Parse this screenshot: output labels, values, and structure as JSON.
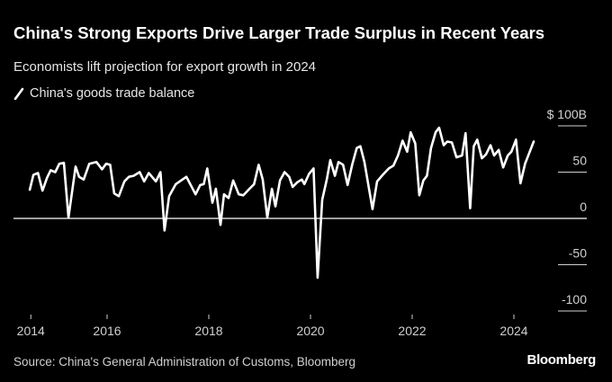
{
  "chart_data": {
    "type": "line",
    "title": "China's Strong Exports Drive Larger Trade Surplus in Recent Years",
    "subtitle": "Economists lift projection for export growth in 2024",
    "xlabel": "",
    "ylabel": "",
    "legend": {
      "position": "top-left",
      "entries": [
        "China's goods trade balance"
      ]
    },
    "y_unit_label": "$ 100B",
    "ylim": [
      -100,
      100
    ],
    "y_ticks": [
      {
        "value": 100,
        "label": "$ 100B"
      },
      {
        "value": 50,
        "label": "50"
      },
      {
        "value": 0,
        "label": "0"
      },
      {
        "value": -50,
        "label": "-50"
      },
      {
        "value": -100,
        "label": "-100"
      }
    ],
    "x_ticks": [
      {
        "value": 2014.5,
        "label": "2014"
      },
      {
        "value": 2016,
        "label": "2016"
      },
      {
        "value": 2018,
        "label": "2018"
      },
      {
        "value": 2020,
        "label": "2020"
      },
      {
        "value": 2022,
        "label": "2022"
      },
      {
        "value": 2024,
        "label": "2024"
      }
    ],
    "xlim": [
      2014.1,
      2025.4
    ],
    "grid": false,
    "series": [
      {
        "name": "China's goods trade balance",
        "color": "#ffffff",
        "x": [
          2014.48,
          2014.55,
          2014.64,
          2014.73,
          2014.82,
          2014.89,
          2014.98,
          2015.06,
          2015.15,
          2015.24,
          2015.38,
          2015.45,
          2015.54,
          2015.65,
          2015.79,
          2015.9,
          2015.98,
          2016.06,
          2016.14,
          2016.23,
          2016.34,
          2016.43,
          2016.52,
          2016.64,
          2016.73,
          2016.82,
          2016.96,
          2017.05,
          2017.13,
          2017.22,
          2017.35,
          2017.56,
          2017.74,
          2017.83,
          2017.9,
          2017.97,
          2018.07,
          2018.14,
          2018.23,
          2018.3,
          2018.39,
          2018.48,
          2018.59,
          2018.68,
          2018.8,
          2018.89,
          2018.98,
          2019.06,
          2019.15,
          2019.24,
          2019.31,
          2019.4,
          2019.49,
          2019.58,
          2019.65,
          2019.74,
          2019.83,
          2019.88,
          2019.97,
          2020.06,
          2020.14,
          2020.23,
          2020.32,
          2020.39,
          2020.48,
          2020.55,
          2020.64,
          2020.73,
          2020.82,
          2020.91,
          2020.98,
          2021.06,
          2021.22,
          2021.31,
          2021.42,
          2021.54,
          2021.63,
          2021.72,
          2021.81,
          2021.9,
          2021.97,
          2022.06,
          2022.14,
          2022.22,
          2022.29,
          2022.37,
          2022.46,
          2022.53,
          2022.62,
          2022.69,
          2022.78,
          2022.87,
          2022.98,
          2023.05,
          2023.14,
          2023.21,
          2023.28,
          2023.37,
          2023.45,
          2023.54,
          2023.61,
          2023.7,
          2023.79,
          2023.88,
          2023.95,
          2024.04,
          2024.13,
          2024.22,
          2024.39
        ],
        "values": [
          31,
          47,
          49,
          30,
          44,
          52,
          50,
          59,
          60,
          1,
          56,
          45,
          42,
          59,
          61,
          53,
          59,
          58,
          27,
          24,
          40,
          45,
          46,
          50,
          40,
          49,
          40,
          50,
          -13,
          24,
          37,
          45,
          26,
          36,
          37,
          54,
          17,
          32,
          -7,
          26,
          22,
          41,
          26,
          25,
          32,
          37,
          58,
          42,
          1,
          32,
          13,
          41,
          50,
          45,
          34,
          39,
          42,
          37,
          48,
          54,
          -64,
          20,
          42,
          63,
          46,
          61,
          58,
          36,
          58,
          76,
          78,
          61,
          10,
          40,
          47,
          54,
          57,
          68,
          84,
          72,
          93,
          81,
          25,
          41,
          46,
          76,
          93,
          98,
          79,
          83,
          82,
          66,
          68,
          92,
          11,
          78,
          85,
          65,
          69,
          79,
          68,
          74,
          55,
          68,
          72,
          85,
          38,
          59,
          83
        ]
      }
    ],
    "source": "Source: China's General Administration of Customs, Bloomberg",
    "brand": "Bloomberg"
  }
}
